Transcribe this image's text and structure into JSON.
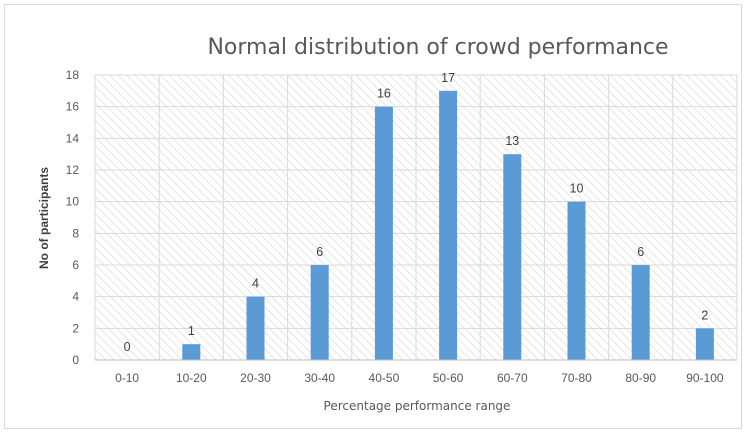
{
  "chart_data": {
    "type": "bar",
    "title": "Normal distribution of crowd performance",
    "xlabel": "Percentage performance range",
    "ylabel": "No of participants",
    "categories": [
      "0-10",
      "10-20",
      "20-30",
      "30-40",
      "40-50",
      "50-60",
      "60-70",
      "70-80",
      "80-90",
      "90-100"
    ],
    "values": [
      0,
      1,
      4,
      6,
      16,
      17,
      13,
      10,
      6,
      2
    ],
    "ylim": [
      0,
      18
    ],
    "yticks": [
      0,
      2,
      4,
      6,
      8,
      10,
      12,
      14,
      16,
      18
    ],
    "grid": true,
    "legend": "none",
    "bar_color": "#5b9bd5"
  }
}
